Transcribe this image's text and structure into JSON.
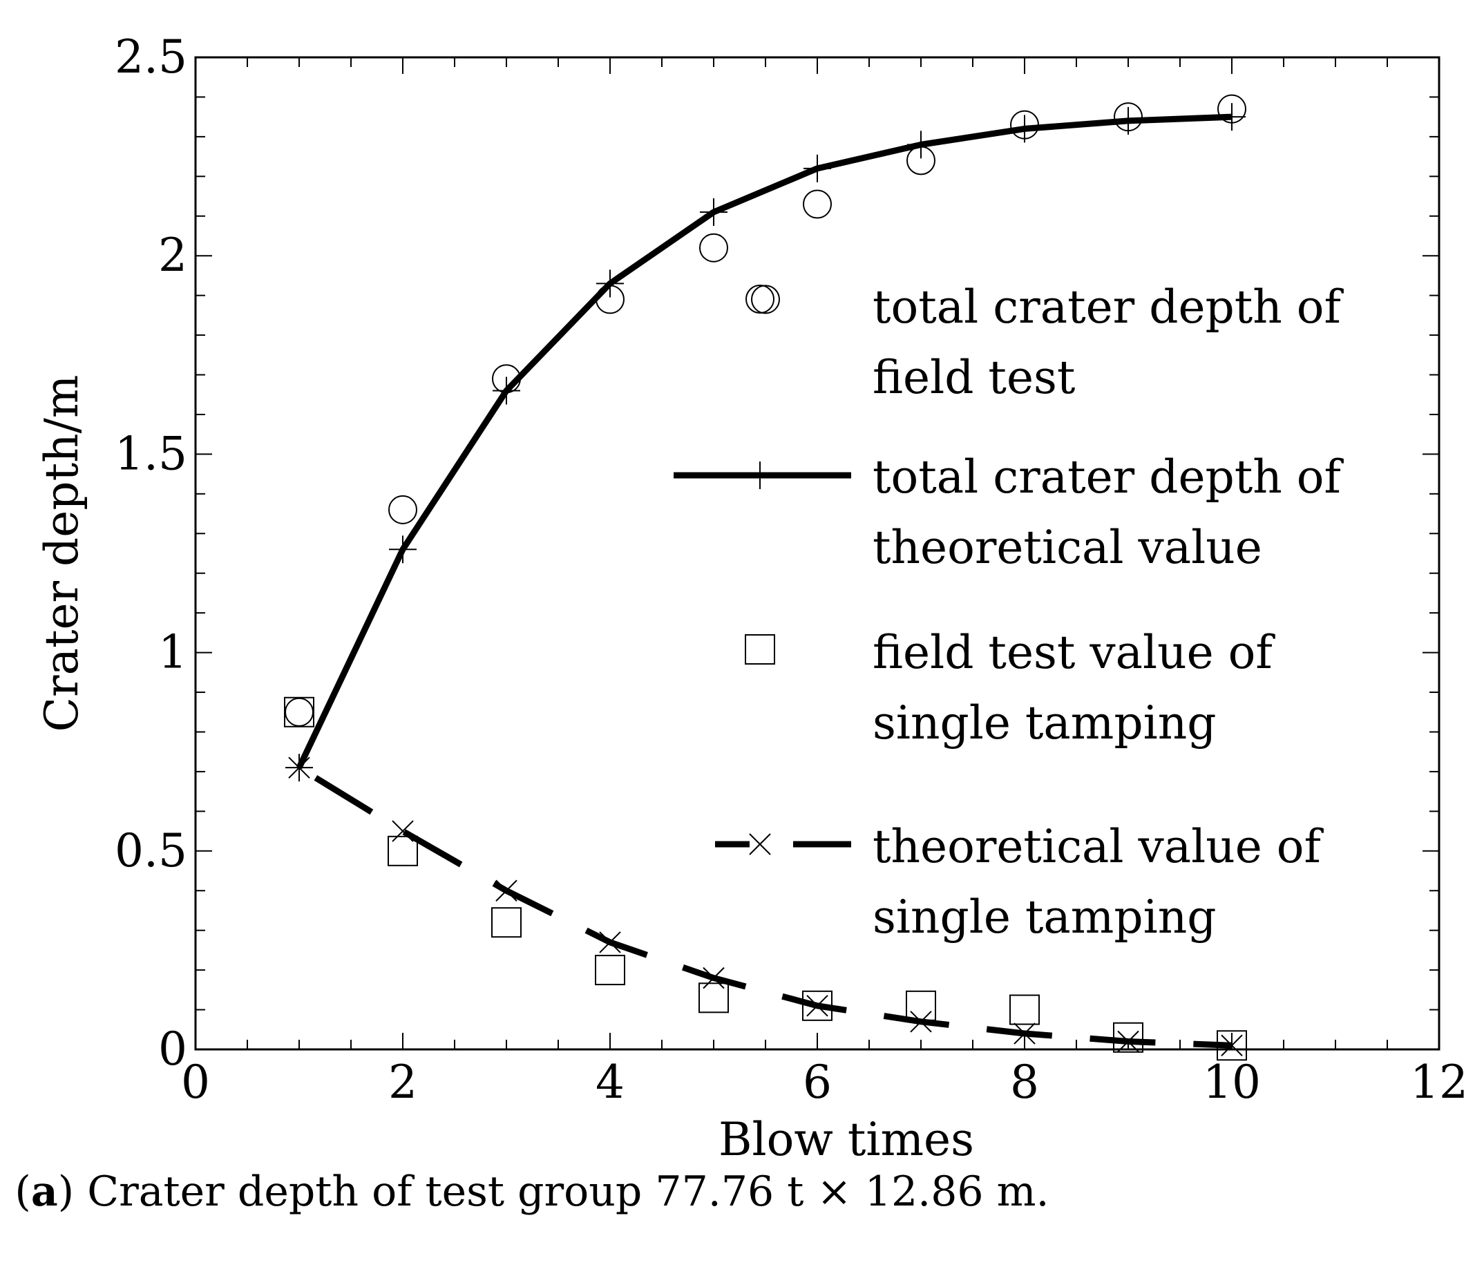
{
  "caption": {
    "label": "a",
    "text": "Crater depth of test group 77.76 t × 12.86 m."
  },
  "chart_data": {
    "type": "line",
    "xlabel": "Blow times",
    "ylabel": "Crater depth/m",
    "xlim": [
      0,
      12
    ],
    "ylim": [
      0,
      2.5
    ],
    "x_ticks": [
      0,
      2,
      4,
      6,
      8,
      10,
      12
    ],
    "x_tick_labels": [
      "0",
      "2",
      "4",
      "6",
      "8",
      "10",
      "12"
    ],
    "y_ticks": [
      0,
      0.5,
      1,
      1.5,
      2,
      2.5
    ],
    "y_tick_labels": [
      "0",
      "0.5",
      "1",
      "1.5",
      "2",
      "2.5"
    ],
    "grid": false,
    "legend_position": "right",
    "series": [
      {
        "name": "total crater depth of field test",
        "style": "circle-markers",
        "x": [
          1,
          2,
          3,
          4,
          5,
          5.5,
          6,
          7,
          8,
          9,
          10
        ],
        "y": [
          0.85,
          1.36,
          1.69,
          1.89,
          2.02,
          1.89,
          2.13,
          2.24,
          2.33,
          2.35,
          2.37
        ]
      },
      {
        "name": "total crater depth of theoretical value",
        "style": "solid-line-plus",
        "x": [
          1,
          2,
          3,
          4,
          5,
          6,
          7,
          8,
          9,
          10
        ],
        "y": [
          0.71,
          1.26,
          1.66,
          1.93,
          2.11,
          2.22,
          2.28,
          2.32,
          2.34,
          2.35
        ]
      },
      {
        "name": "field test value of single tamping",
        "style": "square-markers",
        "x": [
          1,
          2,
          3,
          4,
          5,
          6,
          7,
          8,
          9,
          10
        ],
        "y": [
          0.85,
          0.5,
          0.32,
          0.2,
          0.13,
          0.11,
          0.11,
          0.1,
          0.03,
          0.01
        ]
      },
      {
        "name": "theoretical value of single tamping",
        "style": "dashed-line-x",
        "x": [
          1,
          2,
          3,
          4,
          5,
          6,
          7,
          8,
          9,
          10
        ],
        "y": [
          0.71,
          0.55,
          0.4,
          0.27,
          0.18,
          0.11,
          0.07,
          0.04,
          0.02,
          0.01
        ]
      }
    ],
    "legend_entries": [
      [
        "total crater depth of",
        "field test"
      ],
      [
        "total crater depth of",
        "theoretical value"
      ],
      [
        "field test value of",
        "single tamping"
      ],
      [
        "theoretical value of",
        "single tamping"
      ]
    ]
  }
}
